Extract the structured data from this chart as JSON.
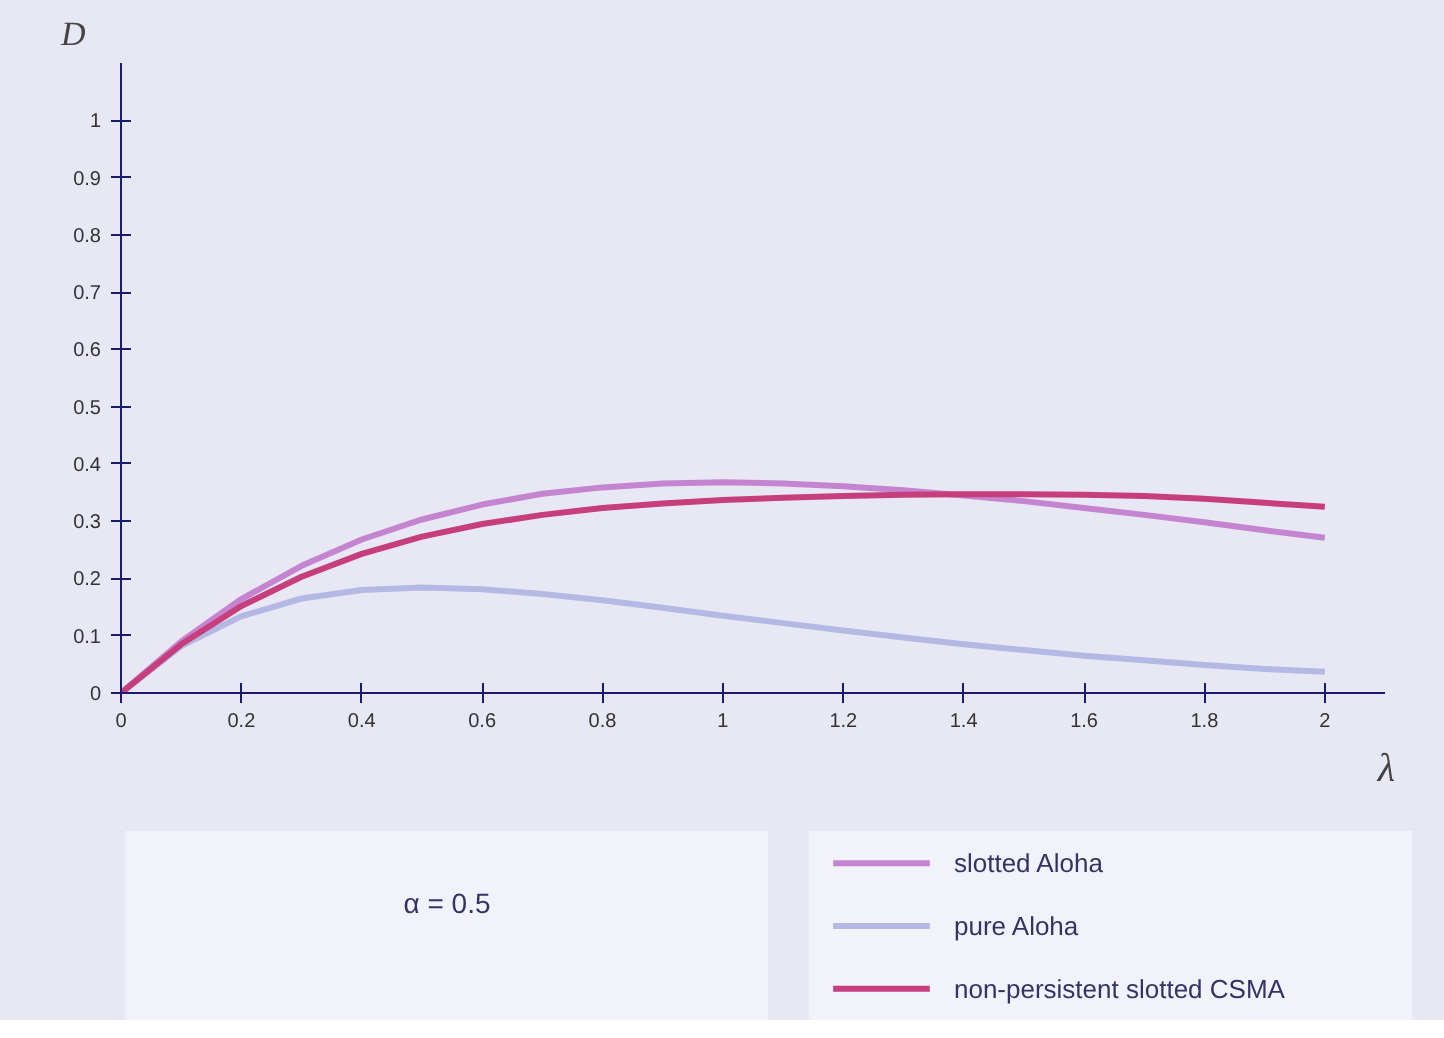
{
  "chart_data": {
    "type": "line",
    "xlabel": "λ",
    "ylabel": "D",
    "x": [
      0,
      0.1,
      0.2,
      0.3,
      0.4,
      0.5,
      0.6,
      0.7,
      0.8,
      0.9,
      1,
      1.1,
      1.2,
      1.3,
      1.4,
      1.5,
      1.6,
      1.7,
      1.8,
      1.9,
      2
    ],
    "series": [
      {
        "name": "slotted Aloha",
        "color": "#c584cf",
        "values": [
          0,
          0.09,
          0.164,
          0.222,
          0.268,
          0.303,
          0.329,
          0.348,
          0.359,
          0.366,
          0.368,
          0.366,
          0.361,
          0.354,
          0.345,
          0.335,
          0.323,
          0.311,
          0.298,
          0.284,
          0.271
        ]
      },
      {
        "name": "pure Aloha",
        "color": "#b3b9e3",
        "values": [
          0,
          0.082,
          0.134,
          0.165,
          0.18,
          0.184,
          0.181,
          0.173,
          0.162,
          0.149,
          0.135,
          0.122,
          0.109,
          0.097,
          0.085,
          0.075,
          0.065,
          0.057,
          0.049,
          0.042,
          0.037
        ]
      },
      {
        "name": "non-persistent slotted CSMA",
        "color": "#c73e7c",
        "values": [
          0,
          0.085,
          0.152,
          0.203,
          0.243,
          0.273,
          0.295,
          0.311,
          0.323,
          0.331,
          0.337,
          0.341,
          0.344,
          0.346,
          0.347,
          0.347,
          0.346,
          0.344,
          0.339,
          0.332,
          0.325
        ]
      }
    ],
    "xlim": [
      0,
      2.1
    ],
    "ylim": [
      0,
      1.1
    ],
    "xticks": [
      0,
      0.2,
      0.4,
      0.6,
      0.8,
      1,
      1.2,
      1.4,
      1.6,
      1.8,
      2
    ],
    "yticks": [
      0,
      0.1,
      0.2,
      0.3,
      0.4,
      0.5,
      0.6,
      0.7,
      0.8,
      0.9,
      1
    ],
    "grid": false,
    "legend": "bottom right",
    "line_style": "solid",
    "marker": "none",
    "annotations": [
      "α = 0.5"
    ]
  }
}
